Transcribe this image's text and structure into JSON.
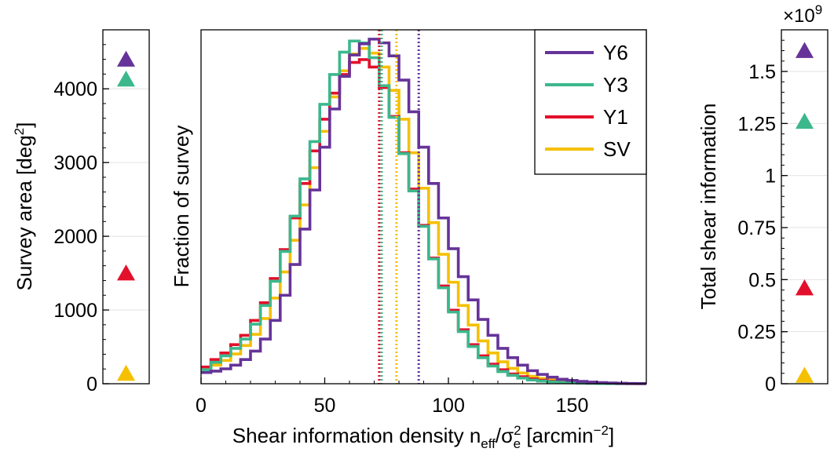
{
  "chart_data": [
    {
      "type": "scatter",
      "ylabel": "Survey area [deg",
      "ylabel_sup": "2",
      "ylabel_end": "]",
      "ylim": [
        0,
        4800
      ],
      "yticks": [
        0,
        1000,
        2000,
        3000,
        4000
      ],
      "ytick_labels": [
        "0",
        "1000",
        "2000",
        "3000",
        "4000"
      ],
      "grid": true,
      "points": [
        {
          "name": "Y6",
          "value": 4400,
          "color": "#663399",
          "marker": "triangle"
        },
        {
          "name": "Y3",
          "value": 4130,
          "color": "#3cb88c",
          "marker": "triangle"
        },
        {
          "name": "Y1",
          "value": 1500,
          "color": "#e3102b",
          "marker": "triangle"
        },
        {
          "name": "SV",
          "value": 140,
          "color": "#f5c000",
          "marker": "triangle"
        }
      ]
    },
    {
      "type": "line",
      "ylabel": "Fraction of survey",
      "xlabel": "Shear information density n",
      "xlabel_sub1": "eff",
      "xlabel_mid": "/σ",
      "xlabel_sup": "2",
      "xlabel_sub2": "e",
      "xlabel_end": " [arcmin",
      "xlabel_sup2": "−2",
      "xlabel_close": "]",
      "xlim": [
        0,
        180
      ],
      "ylim": [
        0,
        3800
      ],
      "xticks": [
        0,
        50,
        100,
        150
      ],
      "xtick_labels": [
        "0",
        "50",
        "100",
        "150"
      ],
      "bin_width": 4,
      "legend_position": "top-right",
      "legend_labels": [
        "Y6",
        "Y3",
        "Y1",
        "SV"
      ],
      "series": [
        {
          "name": "Y6",
          "color": "#663399",
          "mean": 88,
          "values": [
            120,
            135,
            160,
            200,
            260,
            350,
            480,
            680,
            950,
            1280,
            1660,
            2080,
            2540,
            2950,
            3300,
            3530,
            3650,
            3700,
            3660,
            3520,
            3260,
            2920,
            2540,
            2150,
            1780,
            1450,
            1150,
            900,
            690,
            520,
            380,
            280,
            200,
            140,
            100,
            70,
            48,
            35,
            25,
            18,
            12,
            8,
            5,
            3,
            2
          ]
        },
        {
          "name": "Y3",
          "color": "#3cb88c",
          "mean": 73,
          "values": [
            150,
            230,
            300,
            380,
            480,
            640,
            840,
            1100,
            1420,
            1800,
            2200,
            2600,
            3000,
            3320,
            3560,
            3680,
            3660,
            3500,
            3200,
            2860,
            2470,
            2070,
            1690,
            1340,
            1030,
            770,
            560,
            400,
            280,
            190,
            130,
            90,
            60,
            40,
            28,
            20,
            14,
            10,
            7,
            5,
            3,
            2,
            1,
            1,
            1
          ]
        },
        {
          "name": "Y1",
          "color": "#e3102b",
          "mean": 72,
          "values": [
            180,
            260,
            330,
            420,
            520,
            680,
            870,
            1130,
            1440,
            1780,
            2150,
            2500,
            2840,
            3120,
            3320,
            3450,
            3480,
            3400,
            3180,
            2870,
            2480,
            2090,
            1700,
            1350,
            1050,
            790,
            580,
            420,
            300,
            210,
            150,
            105,
            75,
            52,
            37,
            26,
            18,
            13,
            9,
            6,
            4,
            3,
            2,
            1,
            1
          ]
        },
        {
          "name": "SV",
          "color": "#f5c000",
          "mean": 79,
          "values": [
            140,
            200,
            250,
            320,
            410,
            530,
            700,
            920,
            1200,
            1540,
            1920,
            2320,
            2710,
            3080,
            3360,
            3540,
            3600,
            3550,
            3400,
            3150,
            2840,
            2480,
            2100,
            1730,
            1390,
            1090,
            840,
            630,
            460,
            330,
            235,
            165,
            115,
            80,
            56,
            40,
            28,
            20,
            14,
            10,
            7,
            5,
            3,
            2,
            1
          ]
        }
      ]
    },
    {
      "type": "scatter",
      "ylabel": "Total shear information",
      "multiplier": "×10",
      "multiplier_exp": "9",
      "ylim": [
        0,
        1.7
      ],
      "yticks": [
        0,
        0.25,
        0.5,
        0.75,
        1,
        1.25,
        1.5
      ],
      "ytick_labels": [
        "0",
        "0.25",
        "0.5",
        "0.75",
        "1",
        "1.25",
        "1.5"
      ],
      "grid": true,
      "points": [
        {
          "name": "Y6",
          "value": 1.6,
          "color": "#663399",
          "marker": "triangle"
        },
        {
          "name": "Y3",
          "value": 1.26,
          "color": "#3cb88c",
          "marker": "triangle"
        },
        {
          "name": "Y1",
          "value": 0.46,
          "color": "#e3102b",
          "marker": "triangle"
        },
        {
          "name": "SV",
          "value": 0.04,
          "color": "#f5c000",
          "marker": "triangle"
        }
      ]
    }
  ]
}
